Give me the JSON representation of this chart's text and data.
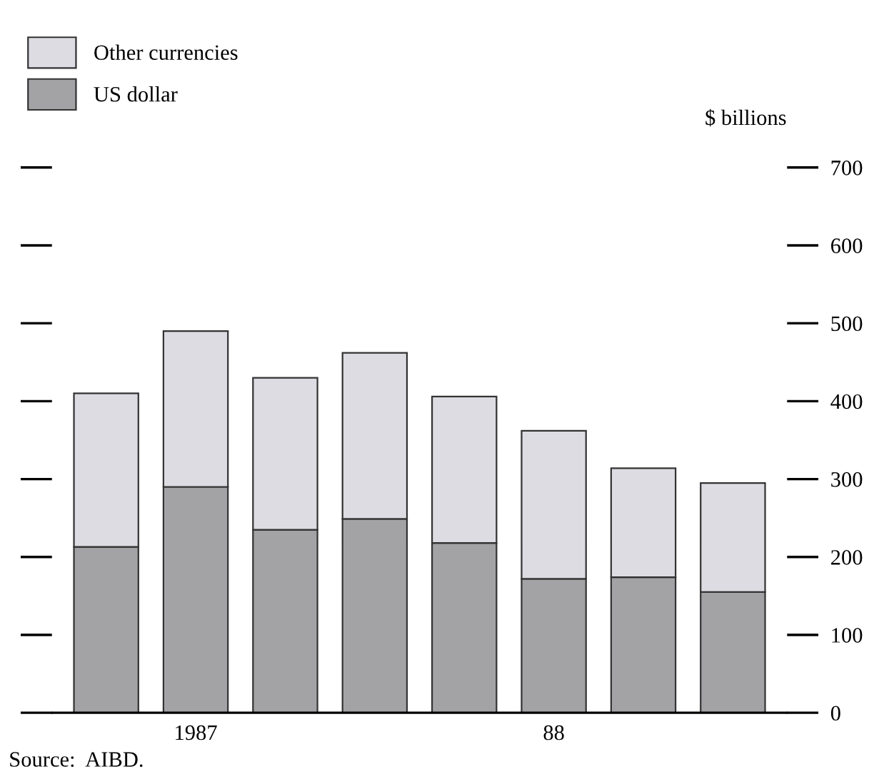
{
  "chart_data": {
    "type": "bar",
    "stacked": true,
    "ylabel": "$ billions",
    "categories": [
      null,
      "1987",
      null,
      null,
      null,
      "88",
      null,
      null
    ],
    "series": [
      {
        "name": "US dollar",
        "color": "#a3a3a6",
        "values": [
          213,
          290,
          235,
          249,
          218,
          172,
          174,
          155
        ]
      },
      {
        "name": "Other currencies",
        "color": "#dcdce2",
        "values": [
          197,
          200,
          195,
          213,
          188,
          190,
          140,
          140
        ]
      }
    ],
    "ylim": [
      0,
      720
    ],
    "yticks": [
      0,
      100,
      200,
      300,
      400,
      500,
      600,
      700
    ],
    "grid": false,
    "legend": "top left",
    "annotations": [
      "Source:  AIBD."
    ]
  }
}
